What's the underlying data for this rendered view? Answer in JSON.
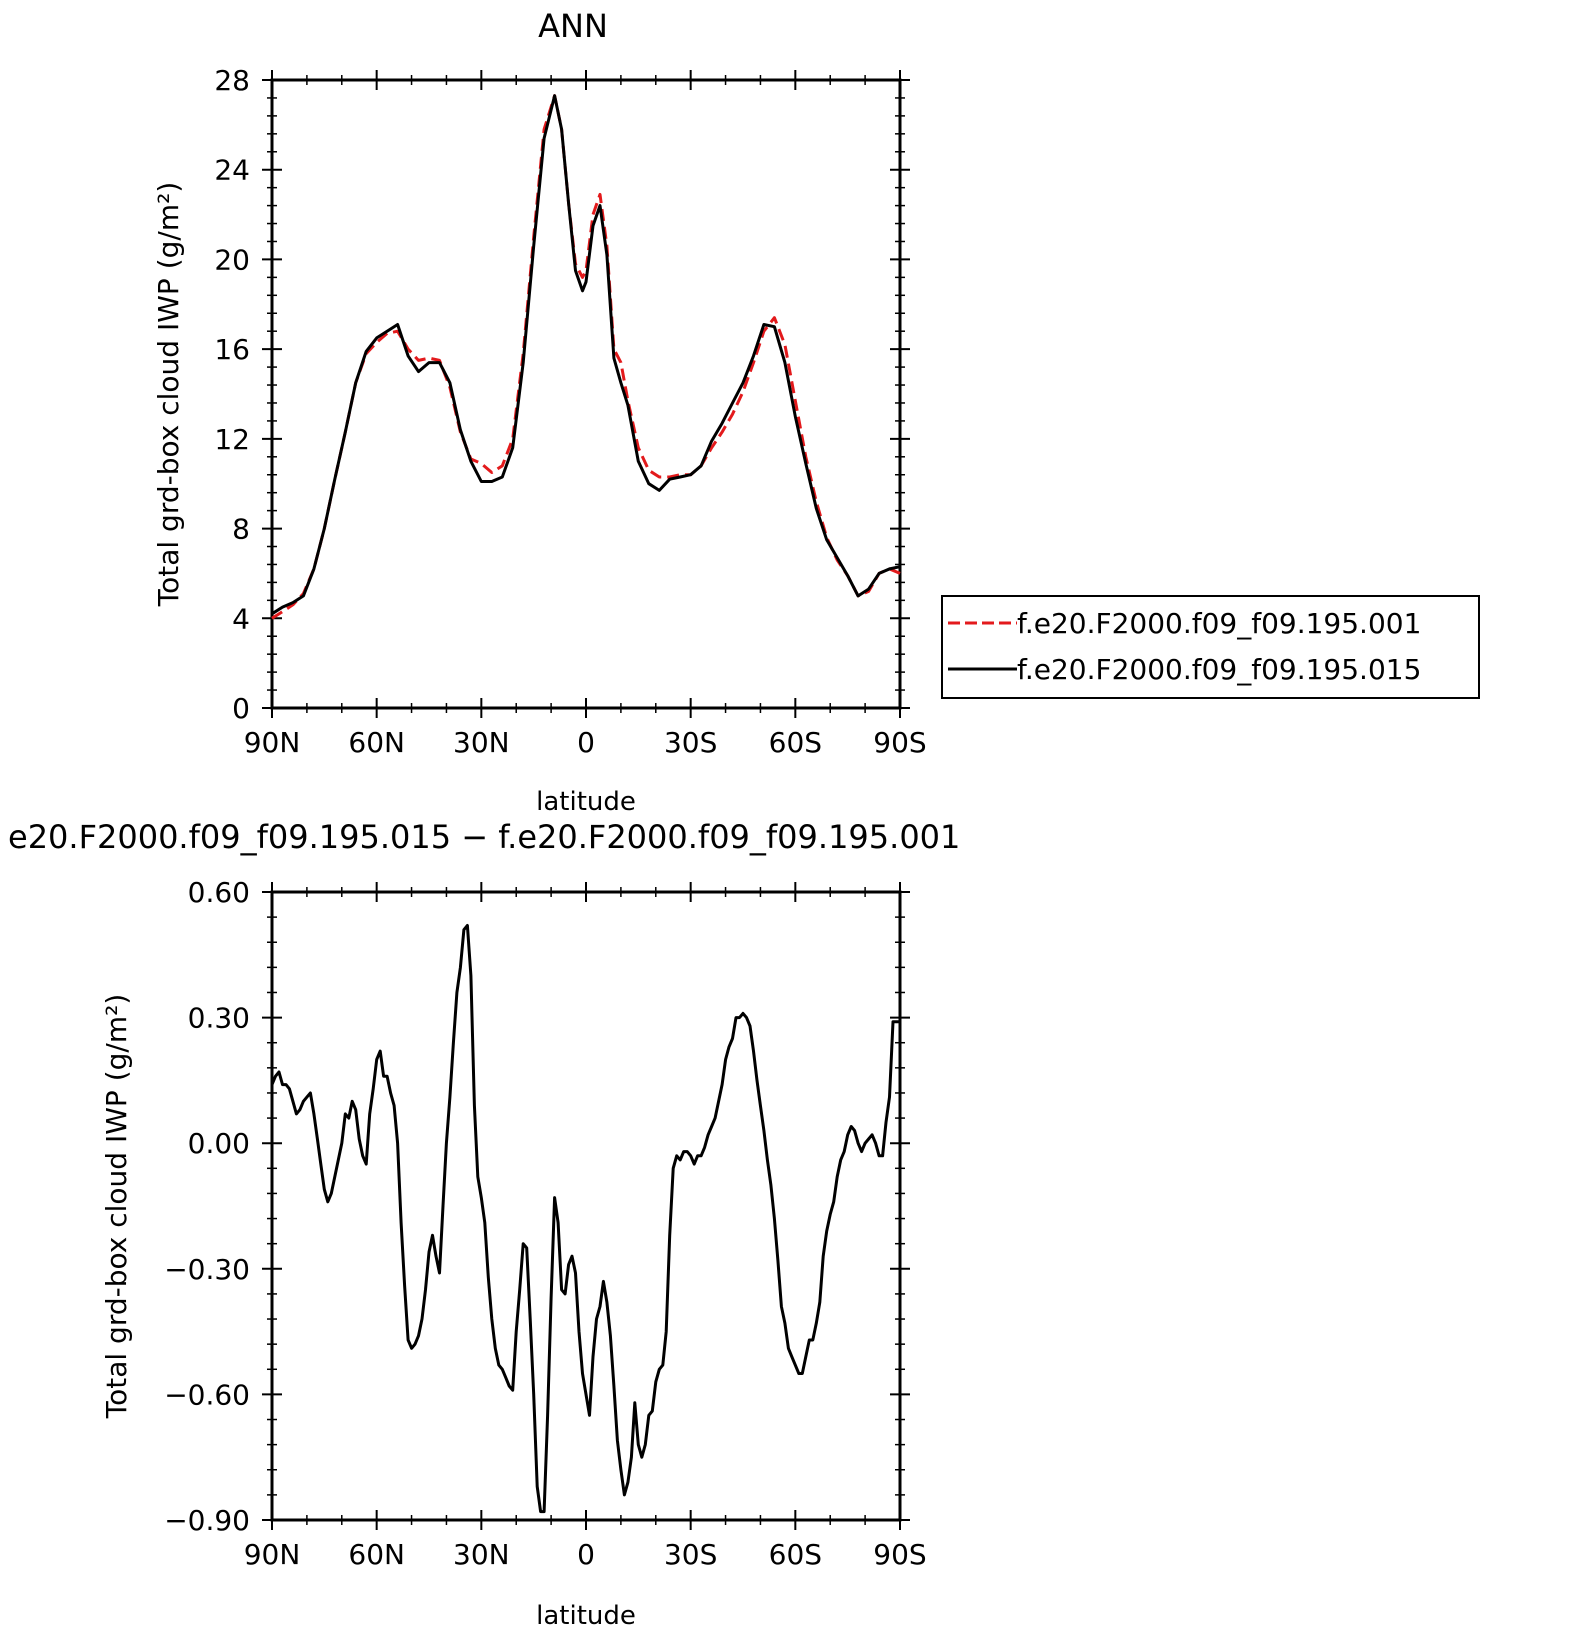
{
  "colors": {
    "exp": "#e31a1c",
    "ctl": "#000000"
  },
  "chart_data": [
    {
      "type": "line",
      "title": "ANN",
      "xlabel": "latitude",
      "ylabel": "Total grd-box cloud IWP (g/m²)",
      "ylim": [
        0,
        28
      ],
      "xlim": [
        90,
        -90
      ],
      "xticks": [
        90,
        60,
        30,
        0,
        -30,
        -60,
        -90
      ],
      "xtick_labels": [
        "90N",
        "60N",
        "30N",
        "0",
        "30S",
        "60S",
        "90S"
      ],
      "yticks": [
        0,
        4,
        8,
        12,
        16,
        20,
        24,
        28
      ],
      "ytick_labels": [
        "0",
        "4",
        "8",
        "12",
        "16",
        "20",
        "24",
        "28"
      ],
      "legend": "right, outside",
      "series": [
        {
          "name": "f.e20.F2000.f09_f09.195.001",
          "style": "dashed",
          "color": "#e31a1c",
          "x": [
            90,
            87,
            84,
            81,
            78,
            75,
            72,
            69,
            66,
            63,
            60,
            57,
            54,
            51,
            48,
            45,
            42,
            39,
            36,
            33,
            30,
            27,
            24,
            21,
            18,
            15,
            12,
            9,
            7,
            5,
            3,
            1,
            0,
            -2,
            -4,
            -6,
            -8,
            -10,
            -12,
            -15,
            -18,
            -21,
            -24,
            -27,
            -30,
            -33,
            -36,
            -39,
            -42,
            -45,
            -48,
            -51,
            -54,
            -57,
            -60,
            -63,
            -66,
            -69,
            -72,
            -75,
            -78,
            -81,
            -84,
            -87,
            -90
          ],
          "y": [
            4.0,
            4.3,
            4.6,
            5.1,
            6.2,
            8.0,
            10.2,
            12.3,
            14.5,
            15.8,
            16.3,
            16.7,
            16.8,
            16.0,
            15.5,
            15.6,
            15.5,
            14.3,
            12.3,
            11.1,
            10.9,
            10.5,
            10.8,
            12.0,
            15.8,
            21.0,
            25.8,
            27.3,
            25.8,
            22.5,
            19.8,
            19.2,
            19.5,
            22.0,
            22.9,
            20.6,
            16.0,
            15.4,
            13.7,
            11.6,
            10.6,
            10.3,
            10.3,
            10.4,
            10.4,
            10.8,
            11.6,
            12.3,
            13.1,
            14.1,
            15.4,
            16.8,
            17.4,
            16.2,
            13.7,
            11.2,
            9.2,
            7.6,
            6.6,
            5.9,
            5.0,
            5.2,
            6.0,
            6.2,
            6.0
          ]
        },
        {
          "name": "f.e20.F2000.f09_f09.195.015",
          "style": "solid",
          "color": "#000000",
          "x": [
            90,
            87,
            84,
            81,
            78,
            75,
            72,
            69,
            66,
            63,
            60,
            57,
            54,
            51,
            48,
            45,
            42,
            39,
            36,
            33,
            30,
            27,
            24,
            21,
            18,
            15,
            12,
            9,
            7,
            5,
            3,
            1,
            0,
            -2,
            -4,
            -6,
            -8,
            -10,
            -12,
            -15,
            -18,
            -21,
            -24,
            -27,
            -30,
            -33,
            -36,
            -39,
            -42,
            -45,
            -48,
            -51,
            -54,
            -57,
            -60,
            -63,
            -66,
            -69,
            -72,
            -75,
            -78,
            -81,
            -84,
            -87,
            -90
          ],
          "y": [
            4.2,
            4.5,
            4.7,
            5.0,
            6.2,
            8.0,
            10.2,
            12.3,
            14.5,
            15.9,
            16.5,
            16.8,
            17.1,
            15.7,
            15.0,
            15.4,
            15.4,
            14.5,
            12.4,
            11.0,
            10.1,
            10.1,
            10.3,
            11.6,
            15.4,
            20.6,
            25.4,
            27.3,
            25.8,
            22.5,
            19.5,
            18.6,
            19.0,
            21.5,
            22.4,
            20.2,
            15.6,
            14.5,
            13.5,
            11.0,
            10.0,
            9.7,
            10.2,
            10.3,
            10.4,
            10.8,
            11.9,
            12.7,
            13.6,
            14.5,
            15.7,
            17.1,
            17.0,
            15.4,
            13.0,
            10.9,
            8.9,
            7.5,
            6.7,
            5.9,
            5.0,
            5.3,
            6.0,
            6.2,
            6.3
          ]
        }
      ]
    },
    {
      "type": "line",
      "title": "e20.F2000.f09_f09.195.015 − f.e20.F2000.f09_f09.195.001",
      "xlabel": "latitude",
      "ylabel": "Total grd-box cloud IWP (g/m²)",
      "ylim": [
        -0.9,
        0.6
      ],
      "xlim": [
        90,
        -90
      ],
      "xticks": [
        90,
        60,
        30,
        0,
        -30,
        -60,
        -90
      ],
      "xtick_labels": [
        "90N",
        "60N",
        "30N",
        "0",
        "30S",
        "60S",
        "90S"
      ],
      "yticks": [
        0.6,
        0.3,
        0.0,
        -0.3,
        -0.6,
        -0.9
      ],
      "ytick_labels": [
        "0.60",
        "0.30",
        "0.00",
        "−0.30",
        "−0.60",
        "−0.90"
      ],
      "series": [
        {
          "style": "solid",
          "color": "#000000",
          "x": [
            90,
            89,
            88,
            87,
            86,
            85,
            84,
            83,
            82,
            81,
            80,
            79,
            78,
            77,
            76,
            75,
            74,
            73,
            72,
            71,
            70,
            69,
            68,
            67,
            66,
            65,
            64,
            63,
            62,
            61,
            60,
            59,
            58,
            57,
            56,
            55,
            54,
            53,
            52,
            51,
            50,
            49,
            48,
            47,
            46,
            45,
            44,
            43,
            42,
            41,
            40,
            39,
            38,
            37,
            36,
            35,
            34,
            33,
            32,
            31,
            30,
            29,
            28,
            27,
            26,
            25,
            24,
            23,
            22,
            21,
            20,
            19,
            18,
            17,
            16,
            15,
            14,
            13,
            12,
            11,
            10,
            9,
            8,
            7,
            6,
            5,
            4,
            3,
            2,
            1,
            0,
            -1,
            -2,
            -3,
            -4,
            -5,
            -6,
            -7,
            -8,
            -9,
            -10,
            -11,
            -12,
            -13,
            -14,
            -15,
            -16,
            -17,
            -18,
            -19,
            -20,
            -21,
            -22,
            -23,
            -24,
            -25,
            -26,
            -27,
            -28,
            -29,
            -30,
            -31,
            -32,
            -33,
            -34,
            -35,
            -36,
            -37,
            -38,
            -39,
            -40,
            -41,
            -42,
            -43,
            -44,
            -45,
            -46,
            -47,
            -48,
            -49,
            -50,
            -51,
            -52,
            -53,
            -54,
            -55,
            -56,
            -57,
            -58,
            -59,
            -60,
            -61,
            -62,
            -63,
            -64,
            -65,
            -66,
            -67,
            -68,
            -69,
            -70,
            -71,
            -72,
            -73,
            -74,
            -75,
            -76,
            -77,
            -78,
            -79,
            -80,
            -81,
            -82,
            -83,
            -84,
            -85,
            -86,
            -87,
            -88,
            -89,
            -90
          ],
          "y": [
            0.14,
            0.16,
            0.17,
            0.14,
            0.14,
            0.13,
            0.1,
            0.07,
            0.08,
            0.1,
            0.11,
            0.12,
            0.07,
            0.01,
            -0.05,
            -0.11,
            -0.14,
            -0.12,
            -0.08,
            -0.04,
            0.0,
            0.07,
            0.06,
            0.1,
            0.08,
            0.01,
            -0.03,
            -0.05,
            0.07,
            0.13,
            0.2,
            0.22,
            0.16,
            0.16,
            0.12,
            0.09,
            0.0,
            -0.19,
            -0.34,
            -0.47,
            -0.49,
            -0.48,
            -0.46,
            -0.42,
            -0.35,
            -0.26,
            -0.22,
            -0.27,
            -0.31,
            -0.15,
            0.0,
            0.11,
            0.24,
            0.36,
            0.42,
            0.51,
            0.52,
            0.4,
            0.09,
            -0.08,
            -0.13,
            -0.19,
            -0.32,
            -0.42,
            -0.49,
            -0.53,
            -0.54,
            -0.56,
            -0.58,
            -0.59,
            -0.45,
            -0.35,
            -0.24,
            -0.25,
            -0.42,
            -0.6,
            -0.82,
            -0.88,
            -0.88,
            -0.65,
            -0.37,
            -0.13,
            -0.19,
            -0.35,
            -0.36,
            -0.29,
            -0.27,
            -0.31,
            -0.45,
            -0.55,
            -0.6,
            -0.65,
            -0.51,
            -0.42,
            -0.39,
            -0.33,
            -0.38,
            -0.46,
            -0.58,
            -0.71,
            -0.78,
            -0.84,
            -0.81,
            -0.75,
            -0.62,
            -0.72,
            -0.75,
            -0.72,
            -0.65,
            -0.64,
            -0.57,
            -0.54,
            -0.53,
            -0.45,
            -0.22,
            -0.06,
            -0.03,
            -0.04,
            -0.02,
            -0.02,
            -0.03,
            -0.05,
            -0.03,
            -0.03,
            -0.01,
            0.02,
            0.04,
            0.06,
            0.1,
            0.14,
            0.2,
            0.23,
            0.25,
            0.3,
            0.3,
            0.31,
            0.3,
            0.28,
            0.22,
            0.15,
            0.09,
            0.03,
            -0.04,
            -0.1,
            -0.18,
            -0.28,
            -0.39,
            -0.43,
            -0.49,
            -0.51,
            -0.53,
            -0.55,
            -0.55,
            -0.51,
            -0.47,
            -0.47,
            -0.43,
            -0.38,
            -0.27,
            -0.21,
            -0.17,
            -0.14,
            -0.08,
            -0.04,
            -0.02,
            0.02,
            0.04,
            0.03,
            0.0,
            -0.02,
            0.0,
            0.01,
            0.02,
            0.0,
            -0.03,
            -0.03,
            0.05,
            0.11,
            0.29,
            0.29,
            0.29
          ]
        }
      ]
    }
  ]
}
